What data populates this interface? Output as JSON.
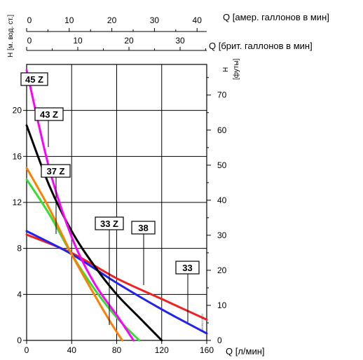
{
  "chart_data": {
    "type": "line",
    "x_axis_bottom": {
      "label": "Q [л/мин]",
      "range": [
        0,
        160
      ],
      "ticks": [
        0,
        40,
        80,
        120,
        160
      ]
    },
    "x_axis_top_us": {
      "label": "Q [амер. галлонов в мин]",
      "range": [
        0,
        42.27
      ],
      "ticks": [
        0,
        10,
        20,
        30,
        40
      ]
    },
    "x_axis_top_uk": {
      "label": "Q [брит. галлонов в мин]",
      "range": [
        0,
        35.2
      ],
      "ticks": [
        0,
        10,
        20,
        30
      ]
    },
    "y_axis_left": {
      "label": "H [м. вод. ст.]",
      "range": [
        0,
        24
      ],
      "ticks": [
        0,
        4,
        8,
        12,
        16,
        20
      ]
    },
    "y_axis_right": {
      "label": "H",
      "sublabel": "[футы]",
      "range": [
        0,
        78.74
      ],
      "ticks": [
        0,
        10,
        20,
        30,
        40,
        50,
        60,
        70
      ]
    },
    "grid": true,
    "small_text": "88080128_01",
    "series": [
      {
        "name": "45 Z",
        "color": "#ff00ff",
        "points": [
          [
            0,
            23.5
          ],
          [
            20,
            15
          ],
          [
            40,
            9
          ],
          [
            60,
            5
          ],
          [
            80,
            2.2
          ],
          [
            95,
            0
          ]
        ]
      },
      {
        "name": "43 Z",
        "color": "#000000",
        "points": [
          [
            0,
            18.7
          ],
          [
            20,
            13.5
          ],
          [
            40,
            9.5
          ],
          [
            60,
            6.5
          ],
          [
            80,
            4
          ],
          [
            100,
            2
          ],
          [
            120,
            0
          ]
        ]
      },
      {
        "name": "37 Z",
        "color": "#ff8000",
        "points": [
          [
            0,
            15
          ],
          [
            20,
            11.5
          ],
          [
            40,
            7.5
          ],
          [
            60,
            4
          ],
          [
            75,
            1.5
          ],
          [
            85,
            0
          ]
        ]
      },
      {
        "name": "33 Z",
        "color": "#33dd33",
        "points": [
          [
            0,
            14
          ],
          [
            20,
            11
          ],
          [
            40,
            7.5
          ],
          [
            60,
            4.5
          ],
          [
            80,
            2
          ],
          [
            100,
            0
          ]
        ]
      },
      {
        "name": "38",
        "color": "#2222ee",
        "points": [
          [
            0,
            9.5
          ],
          [
            40,
            7.5
          ],
          [
            80,
            5
          ],
          [
            120,
            2.7
          ],
          [
            160,
            0.6
          ]
        ]
      },
      {
        "name": "33",
        "color": "#ee2222",
        "points": [
          [
            0,
            9.2
          ],
          [
            40,
            7.6
          ],
          [
            80,
            5.4
          ],
          [
            120,
            3.6
          ],
          [
            160,
            1.8
          ]
        ]
      }
    ],
    "labels": [
      {
        "text": "45 Z"
      },
      {
        "text": "43 Z"
      },
      {
        "text": "37 Z"
      },
      {
        "text": "33 Z"
      },
      {
        "text": "38"
      },
      {
        "text": "33"
      }
    ]
  }
}
